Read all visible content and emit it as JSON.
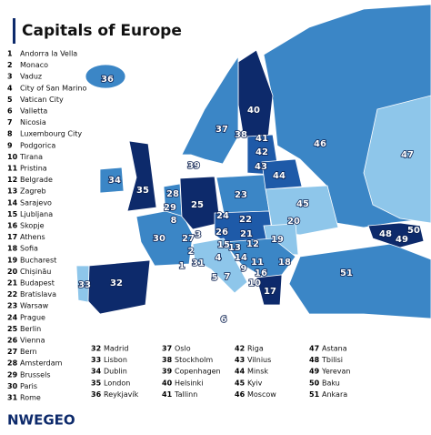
{
  "title": "Capitals of Europe",
  "logo": "NWEGEO",
  "capitals": [
    {
      "number": "1",
      "name": "Andorra la Vella"
    },
    {
      "number": "2",
      "name": "Monaco"
    },
    {
      "number": "3",
      "name": "Vaduz"
    },
    {
      "number": "4",
      "name": "City of San Marino"
    },
    {
      "number": "5",
      "name": "Vatican City"
    },
    {
      "number": "6",
      "name": "Valletta"
    },
    {
      "number": "7",
      "name": "Nicosia"
    },
    {
      "number": "8",
      "name": "Luxembourg City"
    },
    {
      "number": "9",
      "name": "Podgorica"
    },
    {
      "number": "10",
      "name": "Tirana"
    },
    {
      "number": "11",
      "name": "Pristina"
    },
    {
      "number": "12",
      "name": "Belgrade"
    },
    {
      "number": "13",
      "name": "Zagreb"
    },
    {
      "number": "14",
      "name": "Sarajevo"
    },
    {
      "number": "15",
      "name": "Ljubljana"
    },
    {
      "number": "16",
      "name": "Skopje"
    },
    {
      "number": "17",
      "name": "Athens"
    },
    {
      "number": "18",
      "name": "Sofia"
    },
    {
      "number": "19",
      "name": "Bucharest"
    },
    {
      "number": "20",
      "name": "Chișinău"
    },
    {
      "number": "21",
      "name": "Budapest"
    },
    {
      "number": "22",
      "name": "Bratislava"
    },
    {
      "number": "23",
      "name": "Warsaw"
    },
    {
      "number": "24",
      "name": "Prague"
    },
    {
      "number": "25",
      "name": "Berlin"
    },
    {
      "number": "26",
      "name": "Vienna"
    },
    {
      "number": "27",
      "name": "Bern"
    },
    {
      "number": "28",
      "name": "Amsterdam"
    },
    {
      "number": "29",
      "name": "Brussels"
    },
    {
      "number": "30",
      "name": "Paris"
    },
    {
      "number": "31",
      "name": "Rome"
    },
    {
      "number": "32",
      "name": "Madrid"
    },
    {
      "number": "33",
      "name": "Lisbon"
    },
    {
      "number": "34",
      "name": "Dublin"
    },
    {
      "number": "35",
      "name": "London"
    },
    {
      "number": "36",
      "name": "Reykjavík"
    },
    {
      "number": "37",
      "name": "Oslo"
    },
    {
      "number": "38",
      "name": "Stockholm"
    },
    {
      "number": "39",
      "name": "Copenhagen"
    },
    {
      "number": "40",
      "name": "Helsinki"
    },
    {
      "number": "41",
      "name": "Tallinn"
    },
    {
      "number": "42",
      "name": "Riga"
    },
    {
      "number": "43",
      "name": "Vilnius"
    },
    {
      "number": "44",
      "name": "Minsk"
    },
    {
      "number": "45",
      "name": "Kyiv"
    },
    {
      "number": "46",
      "name": "Moscow"
    },
    {
      "number": "47",
      "name": "Astana"
    },
    {
      "number": "48",
      "name": "Tbilisi"
    },
    {
      "number": "49",
      "name": "Yerevan"
    },
    {
      "number": "50",
      "name": "Baku"
    },
    {
      "number": "51",
      "name": "Ankara"
    }
  ]
}
